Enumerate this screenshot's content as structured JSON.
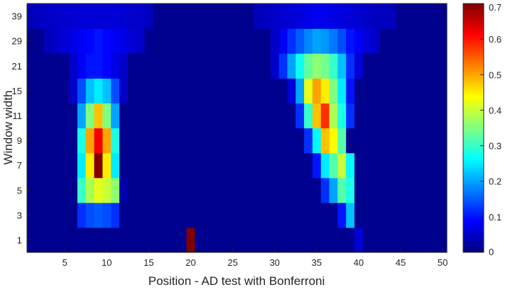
{
  "chart_data": {
    "type": "heatmap",
    "title": "",
    "xlabel": "Position - AD test with Bonferroni",
    "ylabel": "Window width",
    "x_range": [
      1,
      50
    ],
    "x_ticks": [
      5,
      10,
      15,
      20,
      25,
      30,
      35,
      40,
      45,
      50
    ],
    "y_categories": [
      "1",
      "3",
      "5",
      "7",
      "9",
      "11",
      "15",
      "21",
      "29",
      "39"
    ],
    "colormap": "jet",
    "colorbar": {
      "range": [
        0,
        0.7
      ],
      "ticks": [
        0,
        0.1,
        0.2,
        0.3,
        0.4,
        0.5,
        0.6,
        0.7
      ],
      "position": "right"
    },
    "grid": false,
    "values": {
      "1": {
        "20": 0.7,
        "40": 0.06
      },
      "3": {
        "7": 0.12,
        "8": 0.14,
        "9": 0.15,
        "10": 0.14,
        "11": 0.12,
        "38": 0.1,
        "39": 0.22
      },
      "5": {
        "7": 0.3,
        "8": 0.38,
        "9": 0.42,
        "10": 0.4,
        "11": 0.36,
        "12": 0.03,
        "36": 0.12,
        "37": 0.2,
        "38": 0.32,
        "39": 0.28
      },
      "7": {
        "7": 0.25,
        "8": 0.45,
        "9": 0.7,
        "10": 0.45,
        "11": 0.25,
        "35": 0.1,
        "36": 0.25,
        "37": 0.32,
        "38": 0.4,
        "39": 0.26
      },
      "9": {
        "7": 0.28,
        "8": 0.5,
        "9": 0.62,
        "10": 0.5,
        "11": 0.28,
        "34": 0.12,
        "35": 0.26,
        "36": 0.48,
        "37": 0.44,
        "38": 0.32
      },
      "11": {
        "7": 0.2,
        "8": 0.35,
        "9": 0.48,
        "10": 0.35,
        "11": 0.2,
        "33": 0.12,
        "34": 0.3,
        "35": 0.48,
        "36": 0.58,
        "37": 0.38,
        "38": 0.28,
        "39": 0.12
      },
      "15": {
        "6": 0.05,
        "7": 0.14,
        "8": 0.22,
        "9": 0.25,
        "10": 0.22,
        "11": 0.14,
        "12": 0.05,
        "32": 0.06,
        "33": 0.2,
        "34": 0.42,
        "35": 0.5,
        "36": 0.45,
        "37": 0.35,
        "38": 0.25,
        "39": 0.1
      },
      "21": {
        "6": 0.05,
        "7": 0.08,
        "8": 0.1,
        "9": 0.1,
        "10": 0.09,
        "11": 0.07,
        "12": 0.05,
        "30": 0.05,
        "31": 0.12,
        "32": 0.2,
        "33": 0.27,
        "34": 0.33,
        "35": 0.36,
        "36": 0.34,
        "37": 0.3,
        "38": 0.22,
        "39": 0.12,
        "40": 0.06
      },
      "29": {
        "3": 0.04,
        "4": 0.05,
        "5": 0.06,
        "6": 0.07,
        "7": 0.08,
        "8": 0.09,
        "9": 0.1,
        "10": 0.09,
        "11": 0.08,
        "12": 0.07,
        "13": 0.06,
        "14": 0.05,
        "30": 0.05,
        "31": 0.08,
        "32": 0.12,
        "33": 0.15,
        "34": 0.18,
        "35": 0.2,
        "36": 0.19,
        "37": 0.17,
        "38": 0.14,
        "39": 0.1,
        "40": 0.08,
        "41": 0.06,
        "42": 0.05
      },
      "39": {
        "1": 0.04,
        "2": 0.045,
        "3": 0.05,
        "4": 0.05,
        "5": 0.055,
        "6": 0.055,
        "7": 0.06,
        "8": 0.06,
        "9": 0.06,
        "10": 0.06,
        "11": 0.06,
        "12": 0.055,
        "13": 0.05,
        "14": 0.05,
        "15": 0.045,
        "28": 0.04,
        "29": 0.045,
        "30": 0.05,
        "31": 0.055,
        "32": 0.06,
        "33": 0.065,
        "34": 0.07,
        "35": 0.075,
        "36": 0.075,
        "37": 0.07,
        "38": 0.065,
        "39": 0.06,
        "40": 0.055,
        "41": 0.05,
        "42": 0.045,
        "43": 0.045,
        "44": 0.04
      }
    },
    "background_value": 0.01
  }
}
